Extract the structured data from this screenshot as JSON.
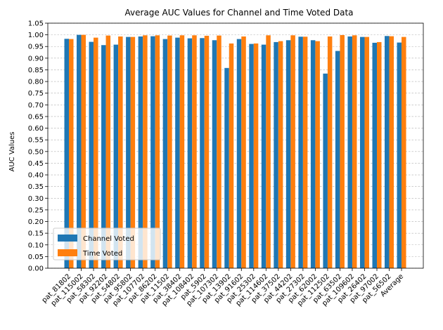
{
  "chart_data": {
    "type": "bar",
    "title": "Average AUC Values for Channel and Time Voted Data",
    "xlabel": "",
    "ylabel": "AUC Values",
    "ylim": [
      0,
      1.05
    ],
    "yticks": [
      "0.00",
      "0.05",
      "0.10",
      "0.15",
      "0.20",
      "0.25",
      "0.30",
      "0.35",
      "0.40",
      "0.45",
      "0.50",
      "0.55",
      "0.60",
      "0.65",
      "0.70",
      "0.75",
      "0.80",
      "0.85",
      "0.90",
      "0.95",
      "1.00",
      "1.05"
    ],
    "grid": "horizontal dashed",
    "legend_position": "lower-left",
    "categories": [
      "pat_81802",
      "pat_115002",
      "pat_58302",
      "pat_92202",
      "pat_54802",
      "pat_95802",
      "pat_107702",
      "pat_86202",
      "pat_11502",
      "pat_38402",
      "pat_108402",
      "pat_5902",
      "pat_107302",
      "pat_13902",
      "pat_91602",
      "pat_25302",
      "pat_114602",
      "pat_37502",
      "pat_44202",
      "pat_27302",
      "pat_62002",
      "pat_112502",
      "pat_63502",
      "pat_109602",
      "pat_26402",
      "pat_97002",
      "pat_56502",
      "Average"
    ],
    "series": [
      {
        "name": "Channel Voted",
        "color": "#1f77b4",
        "values": [
          0.983,
          1.0,
          0.97,
          0.956,
          0.958,
          0.991,
          0.993,
          0.994,
          0.982,
          0.988,
          0.985,
          0.986,
          0.977,
          0.858,
          0.982,
          0.961,
          0.958,
          0.969,
          0.977,
          0.992,
          0.977,
          0.834,
          0.931,
          0.993,
          0.991,
          0.966,
          0.995,
          0.967
        ]
      },
      {
        "name": "Time Voted",
        "color": "#ff7f0e",
        "values": [
          0.982,
          1.0,
          0.988,
          0.997,
          0.993,
          0.991,
          0.998,
          0.998,
          0.997,
          0.998,
          0.998,
          0.996,
          0.997,
          0.963,
          0.993,
          0.963,
          0.998,
          0.973,
          0.998,
          0.992,
          0.973,
          0.993,
          0.999,
          0.998,
          0.991,
          0.969,
          0.994,
          0.991
        ]
      }
    ]
  }
}
